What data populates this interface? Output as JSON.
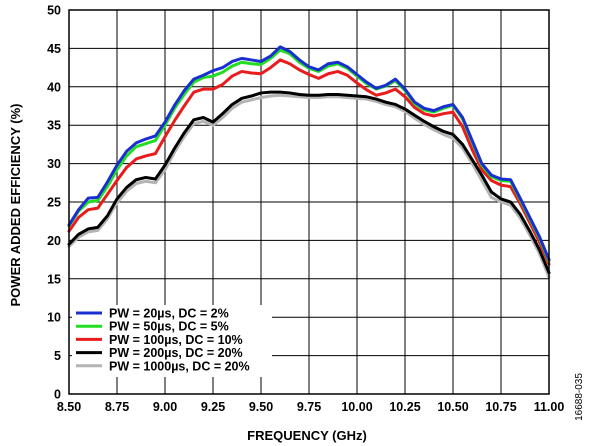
{
  "chart_data": {
    "type": "line",
    "xlabel": "FREQUENCY (GHz)",
    "ylabel": "POWER ADDED EFFICIENCY (%)",
    "xlim": [
      8.5,
      11.0
    ],
    "ylim": [
      0,
      50
    ],
    "xticks": [
      "8.50",
      "8.75",
      "9.00",
      "9.25",
      "9.50",
      "9.75",
      "10.00",
      "10.25",
      "10.50",
      "10.75",
      "11.00"
    ],
    "yticks": [
      "0",
      "5",
      "10",
      "15",
      "20",
      "25",
      "30",
      "35",
      "40",
      "45",
      "50"
    ],
    "grid": true,
    "legend_position": "bottom-left",
    "figure_id": "16688-035",
    "series": [
      {
        "name": "PW = 20µs, DC = 2%",
        "color": "#1a2fd0",
        "x": [
          8.5,
          8.55,
          8.6,
          8.65,
          8.7,
          8.75,
          8.8,
          8.85,
          8.9,
          8.95,
          9.0,
          9.05,
          9.1,
          9.15,
          9.2,
          9.25,
          9.3,
          9.35,
          9.4,
          9.45,
          9.5,
          9.55,
          9.6,
          9.65,
          9.7,
          9.75,
          9.8,
          9.85,
          9.9,
          9.95,
          10.0,
          10.05,
          10.1,
          10.15,
          10.2,
          10.25,
          10.3,
          10.35,
          10.4,
          10.45,
          10.5,
          10.55,
          10.6,
          10.65,
          10.7,
          10.75,
          10.8,
          10.85,
          10.9,
          10.95,
          11.0
        ],
        "y": [
          22.0,
          24.0,
          25.5,
          25.6,
          27.6,
          29.8,
          31.6,
          32.7,
          33.2,
          33.6,
          35.4,
          37.6,
          39.5,
          41.0,
          41.5,
          42.1,
          42.5,
          43.3,
          43.7,
          43.5,
          43.3,
          44.0,
          45.2,
          44.6,
          43.5,
          42.6,
          42.2,
          43.0,
          43.2,
          42.6,
          41.6,
          40.6,
          39.8,
          40.2,
          41.0,
          39.7,
          38.0,
          37.2,
          36.9,
          37.4,
          37.7,
          36.0,
          33.0,
          30.0,
          28.5,
          28.0,
          27.9,
          25.5,
          23.0,
          20.5,
          17.5
        ]
      },
      {
        "name": "PW = 50µs, DC = 5%",
        "color": "#22dd22",
        "x": [
          8.5,
          8.55,
          8.6,
          8.65,
          8.7,
          8.75,
          8.8,
          8.85,
          8.9,
          8.95,
          9.0,
          9.05,
          9.1,
          9.15,
          9.2,
          9.25,
          9.3,
          9.35,
          9.4,
          9.45,
          9.5,
          9.55,
          9.6,
          9.65,
          9.7,
          9.75,
          9.8,
          9.85,
          9.9,
          9.95,
          10.0,
          10.05,
          10.1,
          10.15,
          10.2,
          10.25,
          10.3,
          10.35,
          10.4,
          10.45,
          10.5,
          10.55,
          10.6,
          10.65,
          10.7,
          10.75,
          10.8,
          10.85,
          10.9,
          10.95,
          11.0
        ],
        "y": [
          21.9,
          23.8,
          25.0,
          25.2,
          27.0,
          29.2,
          31.0,
          32.2,
          32.6,
          33.0,
          35.0,
          37.2,
          39.0,
          40.6,
          41.2,
          41.4,
          41.9,
          42.7,
          43.2,
          43.0,
          42.9,
          43.7,
          44.8,
          44.3,
          43.2,
          42.4,
          42.0,
          42.7,
          43.0,
          42.4,
          41.4,
          40.4,
          39.7,
          40.1,
          40.8,
          39.5,
          37.8,
          37.0,
          36.7,
          37.2,
          37.6,
          35.8,
          32.8,
          29.8,
          28.3,
          27.8,
          27.7,
          25.3,
          22.8,
          20.3,
          17.3
        ]
      },
      {
        "name": "PW = 100µs, DC = 10%",
        "color": "#e81c1c",
        "x": [
          8.5,
          8.55,
          8.6,
          8.65,
          8.7,
          8.75,
          8.8,
          8.85,
          8.9,
          8.95,
          9.0,
          9.05,
          9.1,
          9.15,
          9.2,
          9.25,
          9.3,
          9.35,
          9.4,
          9.45,
          9.5,
          9.55,
          9.6,
          9.65,
          9.7,
          9.75,
          9.8,
          9.85,
          9.9,
          9.95,
          10.0,
          10.05,
          10.1,
          10.15,
          10.2,
          10.25,
          10.3,
          10.35,
          10.4,
          10.45,
          10.5,
          10.55,
          10.6,
          10.65,
          10.7,
          10.75,
          10.8,
          10.85,
          10.9,
          10.95,
          11.0
        ],
        "y": [
          21.2,
          23.0,
          24.0,
          24.2,
          26.0,
          27.8,
          29.5,
          30.6,
          31.0,
          31.3,
          33.5,
          35.6,
          37.5,
          39.3,
          39.7,
          39.7,
          40.3,
          41.4,
          42.0,
          41.8,
          41.7,
          42.5,
          43.5,
          43.0,
          42.2,
          41.6,
          41.1,
          41.7,
          42.0,
          41.5,
          40.5,
          39.6,
          38.9,
          39.2,
          39.7,
          38.7,
          37.3,
          36.5,
          36.2,
          36.5,
          36.7,
          34.8,
          31.8,
          29.2,
          27.8,
          27.2,
          27.0,
          24.8,
          22.3,
          19.8,
          16.9
        ]
      },
      {
        "name": "PW = 200µs, DC = 20%",
        "color": "#000000",
        "x": [
          8.5,
          8.55,
          8.6,
          8.65,
          8.7,
          8.75,
          8.8,
          8.85,
          8.9,
          8.95,
          9.0,
          9.05,
          9.1,
          9.15,
          9.2,
          9.25,
          9.3,
          9.35,
          9.4,
          9.45,
          9.5,
          9.55,
          9.6,
          9.65,
          9.7,
          9.75,
          9.8,
          9.85,
          9.9,
          9.95,
          10.0,
          10.05,
          10.1,
          10.15,
          10.2,
          10.25,
          10.3,
          10.35,
          10.4,
          10.45,
          10.5,
          10.55,
          10.6,
          10.65,
          10.7,
          10.75,
          10.8,
          10.85,
          10.9,
          10.95,
          11.0
        ],
        "y": [
          19.5,
          20.8,
          21.5,
          21.7,
          23.2,
          25.4,
          26.9,
          27.9,
          28.2,
          28.0,
          29.8,
          32.0,
          34.0,
          35.7,
          36.0,
          35.4,
          36.5,
          37.7,
          38.5,
          38.8,
          39.2,
          39.3,
          39.3,
          39.2,
          39.0,
          38.9,
          38.9,
          39.0,
          39.0,
          38.9,
          38.8,
          38.7,
          38.4,
          38.0,
          37.7,
          37.1,
          36.3,
          35.5,
          34.8,
          34.2,
          33.8,
          32.5,
          30.5,
          28.5,
          26.3,
          25.4,
          25.0,
          23.4,
          21.2,
          18.8,
          15.8
        ]
      },
      {
        "name": "PW = 1000µs, DC = 20%",
        "color": "#b4b4b4",
        "x": [
          8.5,
          8.55,
          8.6,
          8.65,
          8.7,
          8.75,
          8.8,
          8.85,
          8.9,
          8.95,
          9.0,
          9.05,
          9.1,
          9.15,
          9.2,
          9.25,
          9.3,
          9.35,
          9.4,
          9.45,
          9.5,
          9.55,
          9.6,
          9.65,
          9.7,
          9.75,
          9.8,
          9.85,
          9.9,
          9.95,
          10.0,
          10.05,
          10.1,
          10.15,
          10.2,
          10.25,
          10.3,
          10.35,
          10.4,
          10.45,
          10.5,
          10.55,
          10.6,
          10.65,
          10.7,
          10.75,
          10.8,
          10.85,
          10.9,
          10.95,
          11.0
        ],
        "y": [
          19.2,
          20.4,
          21.1,
          21.3,
          22.8,
          24.9,
          26.4,
          27.4,
          27.7,
          27.5,
          29.2,
          31.5,
          33.5,
          35.2,
          35.5,
          35.0,
          36.0,
          37.2,
          38.0,
          38.3,
          38.6,
          38.8,
          38.9,
          38.8,
          38.7,
          38.6,
          38.6,
          38.7,
          38.7,
          38.6,
          38.5,
          38.4,
          38.1,
          37.7,
          37.4,
          36.8,
          35.9,
          35.1,
          34.4,
          33.8,
          33.3,
          32.0,
          30.0,
          27.8,
          25.6,
          25.0,
          24.6,
          22.9,
          20.7,
          18.3,
          15.2
        ]
      }
    ]
  }
}
